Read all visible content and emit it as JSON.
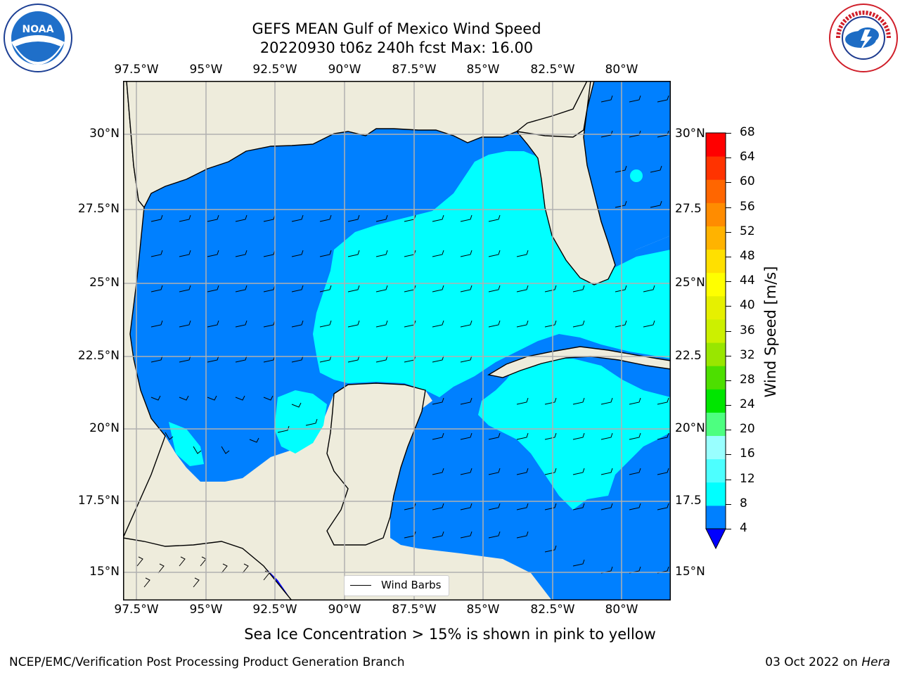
{
  "title": {
    "line1": "GEFS MEAN Gulf of Mexico Wind Speed",
    "line2": "20220930 t06z 240h fcst   Max: 16.00"
  },
  "logos": {
    "left": {
      "name": "NOAA",
      "ring_text": "NATIONAL OCEANIC AND ATMOSPHERIC ADMINISTRATION",
      "bottom_text": "U.S. DEPARTMENT OF COMMERCE"
    },
    "right": {
      "ring_text": "NATIONAL WEATHER SERVICE"
    }
  },
  "map": {
    "lon_labels": [
      "97.5°W",
      "95°W",
      "92.5°W",
      "90°W",
      "87.5°W",
      "85°W",
      "82.5°W",
      "80°W"
    ],
    "lat_labels_left": [
      "30°N",
      "27.5°N",
      "25°N",
      "22.5°N",
      "20°N",
      "17.5°N",
      "15°N"
    ],
    "lat_labels_right": [
      "30°N",
      "27.5",
      "25°N",
      "22.5",
      "20°N",
      "17.5",
      "15°N"
    ],
    "legend_label": "Wind Barbs",
    "colors": {
      "land": "#eeecdc",
      "grid": "#b0b0b0",
      "band_4_8": "#0080ff",
      "band_8_12": "#00ffff",
      "band_lt4": "#0000ff"
    }
  },
  "colorbar": {
    "label": "Wind Speed [m/s]",
    "ticks": [
      "68",
      "64",
      "60",
      "56",
      "52",
      "48",
      "44",
      "40",
      "36",
      "32",
      "28",
      "24",
      "20",
      "16",
      "12",
      "8",
      "4"
    ],
    "colors": [
      "#0080ff",
      "#00ffff",
      "#4dffff",
      "#99ffff",
      "#4dff80",
      "#00e600",
      "#4ddf00",
      "#99e600",
      "#ccf000",
      "#e6f000",
      "#ffff00",
      "#ffe000",
      "#ffb300",
      "#ff8c00",
      "#ff6600",
      "#ff3300",
      "#ff0000"
    ]
  },
  "subnote": "Sea Ice Concentration > 15% is shown in pink to yellow",
  "footer": {
    "left": "NCEP/EMC/Verification Post Processing Product Generation Branch",
    "right_prefix": "03 Oct 2022 on ",
    "right_host": "Hera"
  }
}
